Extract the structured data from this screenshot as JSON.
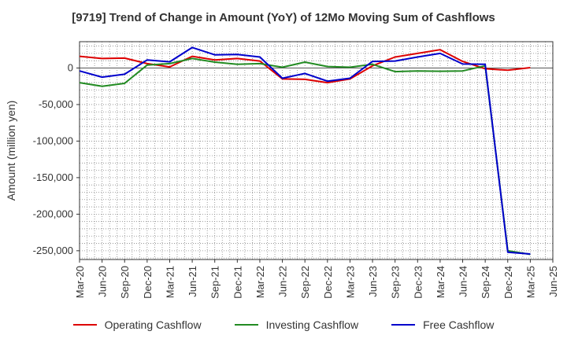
{
  "chart_data": {
    "type": "line",
    "title": "[9719]  Trend of Change in Amount (YoY) of 12Mo Moving Sum of Cashflows",
    "xlabel": "",
    "ylabel": "Amount (million yen)",
    "ylim": [
      -262000,
      36000
    ],
    "yticks": [
      0,
      -50000,
      -100000,
      -150000,
      -200000,
      -250000
    ],
    "ytick_labels": [
      "0",
      "-50,000",
      "-100,000",
      "-150,000",
      "-200,000",
      "-250,000"
    ],
    "grid": true,
    "legend_position": "bottom",
    "categories": [
      "Mar-20",
      "Jun-20",
      "Sep-20",
      "Dec-20",
      "Mar-21",
      "Jun-21",
      "Sep-21",
      "Dec-21",
      "Mar-22",
      "Jun-22",
      "Sep-22",
      "Dec-22",
      "Mar-23",
      "Jun-23",
      "Sep-23",
      "Dec-23",
      "Mar-24",
      "Jun-24",
      "Sep-24",
      "Dec-24",
      "Mar-25",
      "Jun-25"
    ],
    "series": [
      {
        "name": "Operating Cashflow",
        "color": "#dd0000",
        "values": [
          16000,
          13000,
          13500,
          6000,
          1500,
          16000,
          11000,
          13000,
          9500,
          -15000,
          -15500,
          -20000,
          -15000,
          3000,
          15000,
          20000,
          25000,
          9000,
          -1000,
          -3000,
          500,
          null
        ]
      },
      {
        "name": "Investing Cashflow",
        "color": "#228b22",
        "values": [
          -20000,
          -25000,
          -21000,
          4000,
          6000,
          13000,
          8000,
          5000,
          6000,
          1000,
          8000,
          2000,
          1000,
          5000,
          -5000,
          -4000,
          -4500,
          -4000,
          3000,
          -250000,
          -255000,
          null
        ]
      },
      {
        "name": "Free Cashflow",
        "color": "#0000cc",
        "values": [
          -4000,
          -12500,
          -8500,
          11000,
          8500,
          28000,
          18000,
          18500,
          15000,
          -14000,
          -7500,
          -18000,
          -14000,
          9000,
          9500,
          15000,
          20000,
          5500,
          5000,
          -252000,
          -254500,
          null
        ]
      }
    ]
  }
}
